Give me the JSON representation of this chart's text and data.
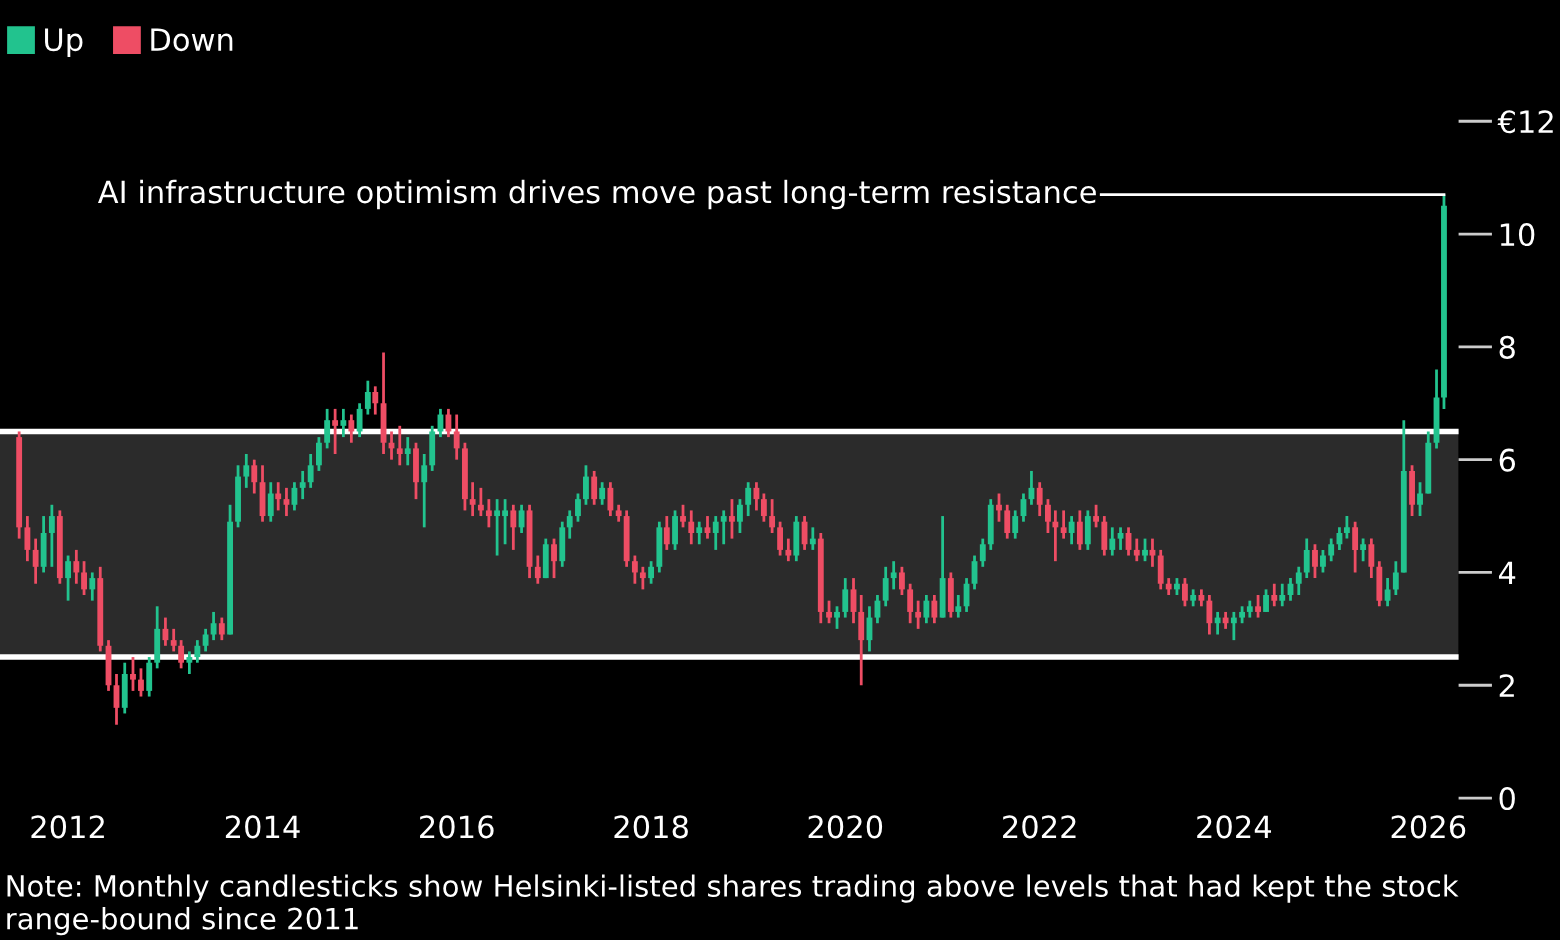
{
  "chart_data": {
    "type": "candlestick",
    "x": [
      "2011-07",
      "2011-08",
      "2011-09",
      "2011-10",
      "2011-11",
      "2011-12",
      "2012-01",
      "2012-02",
      "2012-03",
      "2012-04",
      "2012-05",
      "2012-06",
      "2012-07",
      "2012-08",
      "2012-09",
      "2012-10",
      "2012-11",
      "2012-12",
      "2013-01",
      "2013-02",
      "2013-03",
      "2013-04",
      "2013-05",
      "2013-06",
      "2013-07",
      "2013-08",
      "2013-09",
      "2013-10",
      "2013-11",
      "2013-12",
      "2014-01",
      "2014-02",
      "2014-03",
      "2014-04",
      "2014-05",
      "2014-06",
      "2014-07",
      "2014-08",
      "2014-09",
      "2014-10",
      "2014-11",
      "2014-12",
      "2015-01",
      "2015-02",
      "2015-03",
      "2015-04",
      "2015-05",
      "2015-06",
      "2015-07",
      "2015-08",
      "2015-09",
      "2015-10",
      "2015-11",
      "2015-12",
      "2016-01",
      "2016-02",
      "2016-03",
      "2016-04",
      "2016-05",
      "2016-06",
      "2016-07",
      "2016-08",
      "2016-09",
      "2016-10",
      "2016-11",
      "2016-12",
      "2017-01",
      "2017-02",
      "2017-03",
      "2017-04",
      "2017-05",
      "2017-06",
      "2017-07",
      "2017-08",
      "2017-09",
      "2017-10",
      "2017-11",
      "2017-12",
      "2018-01",
      "2018-02",
      "2018-03",
      "2018-04",
      "2018-05",
      "2018-06",
      "2018-07",
      "2018-08",
      "2018-09",
      "2018-10",
      "2018-11",
      "2018-12",
      "2019-01",
      "2019-02",
      "2019-03",
      "2019-04",
      "2019-05",
      "2019-06",
      "2019-07",
      "2019-08",
      "2019-09",
      "2019-10",
      "2019-11",
      "2019-12",
      "2020-01",
      "2020-02",
      "2020-03",
      "2020-04",
      "2020-05",
      "2020-06",
      "2020-07",
      "2020-08",
      "2020-09",
      "2020-10",
      "2020-11",
      "2020-12",
      "2021-01",
      "2021-02",
      "2021-03",
      "2021-04",
      "2021-05",
      "2021-06",
      "2021-07",
      "2021-08",
      "2021-09",
      "2021-10",
      "2021-11",
      "2021-12",
      "2022-01",
      "2022-02",
      "2022-03",
      "2022-04",
      "2022-05",
      "2022-06",
      "2022-07",
      "2022-08",
      "2022-09",
      "2022-10",
      "2022-11",
      "2022-12",
      "2023-01",
      "2023-02",
      "2023-03",
      "2023-04",
      "2023-05",
      "2023-06",
      "2023-07",
      "2023-08",
      "2023-09",
      "2023-10",
      "2023-11",
      "2023-12",
      "2024-01",
      "2024-02",
      "2024-03",
      "2024-04",
      "2024-05",
      "2024-06",
      "2024-07",
      "2024-08",
      "2024-09",
      "2024-10",
      "2024-11",
      "2024-12",
      "2025-01",
      "2025-02",
      "2025-03",
      "2025-04",
      "2025-05",
      "2025-06",
      "2025-07",
      "2025-08",
      "2025-09",
      "2025-10",
      "2025-11",
      "2025-12",
      "2026-01",
      "2026-02",
      "2026-03"
    ],
    "series": [
      {
        "name": "Up",
        "color": "#22c38e",
        "ohlc": [
          null,
          null,
          null,
          [
            4.1,
            5.0,
            4.0,
            4.7
          ],
          [
            4.7,
            5.2,
            4.1,
            5.0
          ],
          null,
          [
            3.9,
            4.3,
            3.5,
            4.2
          ],
          null,
          null,
          [
            3.7,
            4.0,
            3.5,
            3.9
          ],
          null,
          null,
          null,
          [
            1.6,
            2.4,
            1.5,
            2.2
          ],
          null,
          null,
          [
            1.9,
            2.5,
            1.8,
            2.4
          ],
          [
            2.4,
            3.4,
            2.3,
            3.0
          ],
          null,
          null,
          null,
          [
            2.4,
            2.6,
            2.2,
            2.5
          ],
          [
            2.5,
            2.8,
            2.4,
            2.7
          ],
          [
            2.7,
            3.0,
            2.6,
            2.9
          ],
          [
            2.9,
            3.3,
            2.8,
            3.1
          ],
          null,
          [
            2.9,
            5.2,
            2.9,
            4.9
          ],
          [
            4.9,
            5.9,
            4.8,
            5.7
          ],
          [
            5.7,
            6.1,
            5.5,
            5.9
          ],
          null,
          null,
          [
            5.0,
            5.6,
            4.9,
            5.4
          ],
          null,
          null,
          [
            5.2,
            5.6,
            5.1,
            5.5
          ],
          [
            5.5,
            5.8,
            5.3,
            5.6
          ],
          [
            5.6,
            6.1,
            5.5,
            5.9
          ],
          [
            5.9,
            6.4,
            5.8,
            6.3
          ],
          [
            6.3,
            6.9,
            6.2,
            6.7
          ],
          null,
          [
            6.6,
            6.9,
            6.4,
            6.7
          ],
          null,
          [
            6.5,
            7.0,
            6.4,
            6.9
          ],
          [
            6.9,
            7.4,
            6.8,
            7.2
          ],
          null,
          null,
          null,
          null,
          [
            6.1,
            6.4,
            5.9,
            6.2
          ],
          null,
          [
            5.6,
            6.1,
            4.8,
            5.9
          ],
          [
            5.9,
            6.6,
            5.8,
            6.5
          ],
          [
            6.5,
            6.9,
            6.4,
            6.8
          ],
          null,
          null,
          null,
          null,
          null,
          null,
          [
            5.0,
            5.3,
            4.3,
            5.1
          ],
          [
            5.0,
            5.3,
            4.5,
            5.1
          ],
          null,
          [
            4.8,
            5.2,
            4.7,
            5.1
          ],
          null,
          null,
          [
            3.9,
            4.6,
            3.9,
            4.5
          ],
          null,
          [
            4.2,
            4.9,
            4.1,
            4.8
          ],
          [
            4.8,
            5.1,
            4.6,
            5.0
          ],
          [
            5.0,
            5.4,
            4.9,
            5.3
          ],
          [
            5.3,
            5.9,
            5.2,
            5.7
          ],
          null,
          [
            5.3,
            5.6,
            5.2,
            5.5
          ],
          null,
          null,
          null,
          null,
          null,
          [
            3.9,
            4.2,
            3.8,
            4.1
          ],
          [
            4.1,
            4.9,
            4.0,
            4.8
          ],
          null,
          [
            4.5,
            5.1,
            4.4,
            5.0
          ],
          null,
          null,
          [
            4.7,
            4.9,
            4.5,
            4.8
          ],
          null,
          [
            4.7,
            5.0,
            4.4,
            4.9
          ],
          [
            4.9,
            5.1,
            4.5,
            5.0
          ],
          null,
          [
            4.9,
            5.3,
            4.7,
            5.2
          ],
          [
            5.2,
            5.6,
            5.0,
            5.5
          ],
          null,
          null,
          null,
          null,
          null,
          [
            4.3,
            5.0,
            4.2,
            4.9
          ],
          null,
          [
            4.5,
            4.8,
            4.4,
            4.6
          ],
          null,
          null,
          [
            3.2,
            3.4,
            3.0,
            3.3
          ],
          [
            3.3,
            3.9,
            3.2,
            3.7
          ],
          null,
          null,
          [
            2.8,
            3.4,
            2.6,
            3.2
          ],
          [
            3.2,
            3.6,
            3.1,
            3.5
          ],
          [
            3.5,
            4.1,
            3.4,
            3.9
          ],
          [
            3.9,
            4.2,
            3.7,
            4.0
          ],
          null,
          null,
          null,
          [
            3.2,
            3.6,
            3.1,
            3.5
          ],
          null,
          [
            3.2,
            5.0,
            3.2,
            3.9
          ],
          null,
          [
            3.3,
            3.6,
            3.2,
            3.4
          ],
          [
            3.4,
            3.9,
            3.3,
            3.8
          ],
          [
            3.8,
            4.3,
            3.7,
            4.2
          ],
          [
            4.2,
            4.6,
            4.1,
            4.5
          ],
          [
            4.5,
            5.3,
            4.4,
            5.2
          ],
          null,
          null,
          [
            4.7,
            5.1,
            4.6,
            5.0
          ],
          [
            5.0,
            5.4,
            4.9,
            5.3
          ],
          [
            5.3,
            5.8,
            5.2,
            5.5
          ],
          null,
          null,
          null,
          null,
          [
            4.7,
            5.0,
            4.5,
            4.9
          ],
          null,
          [
            4.5,
            5.1,
            4.4,
            5.0
          ],
          null,
          null,
          [
            4.4,
            4.8,
            4.3,
            4.6
          ],
          [
            4.6,
            4.8,
            4.4,
            4.7
          ],
          null,
          null,
          [
            4.3,
            4.6,
            4.2,
            4.4
          ],
          null,
          null,
          null,
          [
            3.7,
            3.9,
            3.6,
            3.8
          ],
          null,
          [
            3.5,
            3.7,
            3.4,
            3.6
          ],
          null,
          null,
          [
            3.1,
            3.3,
            2.9,
            3.2
          ],
          null,
          [
            3.1,
            3.3,
            2.8,
            3.2
          ],
          [
            3.2,
            3.4,
            3.1,
            3.3
          ],
          [
            3.3,
            3.5,
            3.2,
            3.4
          ],
          null,
          [
            3.3,
            3.7,
            3.3,
            3.6
          ],
          null,
          [
            3.5,
            3.8,
            3.4,
            3.6
          ],
          [
            3.6,
            3.9,
            3.5,
            3.8
          ],
          [
            3.8,
            4.1,
            3.6,
            4.0
          ],
          [
            4.0,
            4.6,
            3.9,
            4.4
          ],
          null,
          [
            4.1,
            4.4,
            4.0,
            4.3
          ],
          [
            4.3,
            4.6,
            4.2,
            4.5
          ],
          [
            4.5,
            4.8,
            4.4,
            4.7
          ],
          [
            4.7,
            5.0,
            4.6,
            4.8
          ],
          null,
          [
            4.4,
            4.6,
            4.2,
            4.5
          ],
          null,
          null,
          [
            3.5,
            3.9,
            3.4,
            3.7
          ],
          [
            3.7,
            4.2,
            3.6,
            4.0
          ],
          [
            4.0,
            6.7,
            4.0,
            5.8
          ],
          null,
          [
            5.2,
            5.6,
            5.0,
            5.4
          ],
          [
            5.4,
            6.5,
            5.4,
            6.3
          ],
          [
            6.3,
            7.6,
            6.2,
            7.1
          ],
          [
            7.1,
            10.7,
            6.9,
            10.5
          ]
        ]
      },
      {
        "name": "Down",
        "color": "#ee4d64",
        "ohlc": [
          [
            6.4,
            6.5,
            4.6,
            4.8
          ],
          [
            4.8,
            5.0,
            4.2,
            4.4
          ],
          [
            4.4,
            4.6,
            3.8,
            4.1
          ],
          null,
          null,
          [
            5.0,
            5.1,
            3.8,
            3.9
          ],
          null,
          [
            4.2,
            4.4,
            3.8,
            4.0
          ],
          [
            4.0,
            4.2,
            3.6,
            3.7
          ],
          null,
          [
            3.9,
            4.1,
            2.6,
            2.7
          ],
          [
            2.7,
            2.8,
            1.9,
            2.0
          ],
          [
            2.0,
            2.2,
            1.3,
            1.6
          ],
          null,
          [
            2.2,
            2.5,
            1.9,
            2.1
          ],
          [
            2.1,
            2.3,
            1.8,
            1.9
          ],
          null,
          null,
          [
            3.0,
            3.2,
            2.7,
            2.8
          ],
          [
            2.8,
            3.0,
            2.6,
            2.7
          ],
          [
            2.7,
            2.8,
            2.3,
            2.4
          ],
          null,
          null,
          null,
          null,
          [
            3.1,
            3.2,
            2.8,
            2.9
          ],
          null,
          null,
          null,
          [
            5.9,
            6.0,
            5.4,
            5.6
          ],
          [
            5.6,
            5.9,
            4.9,
            5.0
          ],
          null,
          [
            5.4,
            5.6,
            5.1,
            5.3
          ],
          [
            5.3,
            5.5,
            5.0,
            5.2
          ],
          null,
          null,
          null,
          null,
          null,
          [
            6.7,
            6.9,
            6.1,
            6.6
          ],
          null,
          [
            6.7,
            6.8,
            6.3,
            6.5
          ],
          null,
          null,
          [
            7.2,
            7.3,
            6.8,
            7.0
          ],
          [
            7.0,
            7.9,
            6.1,
            6.3
          ],
          [
            6.3,
            6.5,
            6.0,
            6.2
          ],
          [
            6.2,
            6.6,
            5.9,
            6.1
          ],
          null,
          [
            6.2,
            6.3,
            5.3,
            5.6
          ],
          null,
          null,
          null,
          [
            6.8,
            6.9,
            6.4,
            6.5
          ],
          [
            6.5,
            6.8,
            6.0,
            6.2
          ],
          [
            6.2,
            6.3,
            5.1,
            5.3
          ],
          [
            5.3,
            5.6,
            5.0,
            5.2
          ],
          [
            5.2,
            5.5,
            5.0,
            5.1
          ],
          [
            5.1,
            5.3,
            4.8,
            5.0
          ],
          null,
          null,
          [
            5.1,
            5.2,
            4.4,
            4.8
          ],
          null,
          [
            5.1,
            5.2,
            3.9,
            4.1
          ],
          [
            4.1,
            4.3,
            3.8,
            3.9
          ],
          null,
          [
            4.5,
            4.6,
            3.9,
            4.2
          ],
          null,
          null,
          null,
          null,
          [
            5.7,
            5.8,
            5.2,
            5.3
          ],
          null,
          [
            5.5,
            5.6,
            5.0,
            5.1
          ],
          [
            5.1,
            5.2,
            4.9,
            5.0
          ],
          [
            5.0,
            5.1,
            4.1,
            4.2
          ],
          [
            4.2,
            4.3,
            3.8,
            4.0
          ],
          [
            4.0,
            4.1,
            3.7,
            3.9
          ],
          null,
          null,
          [
            4.8,
            5.0,
            4.4,
            4.5
          ],
          null,
          [
            5.0,
            5.2,
            4.8,
            4.9
          ],
          [
            4.9,
            5.1,
            4.5,
            4.7
          ],
          null,
          [
            4.8,
            5.0,
            4.6,
            4.7
          ],
          null,
          null,
          [
            5.0,
            5.3,
            4.6,
            4.9
          ],
          null,
          null,
          [
            5.5,
            5.6,
            5.1,
            5.3
          ],
          [
            5.3,
            5.4,
            4.9,
            5.0
          ],
          [
            5.0,
            5.3,
            4.7,
            4.8
          ],
          [
            4.8,
            4.9,
            4.3,
            4.4
          ],
          [
            4.4,
            4.6,
            4.2,
            4.3
          ],
          null,
          [
            4.9,
            5.0,
            4.4,
            4.5
          ],
          null,
          [
            4.6,
            4.7,
            3.1,
            3.3
          ],
          [
            3.3,
            3.5,
            3.1,
            3.2
          ],
          null,
          null,
          [
            3.7,
            3.9,
            3.1,
            3.3
          ],
          [
            3.3,
            3.6,
            2.0,
            2.8
          ],
          null,
          null,
          null,
          null,
          [
            4.0,
            4.1,
            3.6,
            3.7
          ],
          [
            3.7,
            3.8,
            3.1,
            3.3
          ],
          [
            3.3,
            3.5,
            3.0,
            3.2
          ],
          null,
          [
            3.5,
            3.6,
            3.1,
            3.2
          ],
          null,
          [
            3.9,
            4.0,
            3.2,
            3.3
          ],
          null,
          null,
          null,
          null,
          null,
          [
            5.2,
            5.4,
            4.9,
            5.1
          ],
          [
            5.1,
            5.2,
            4.6,
            4.7
          ],
          null,
          null,
          null,
          [
            5.5,
            5.6,
            5.0,
            5.2
          ],
          [
            5.2,
            5.3,
            4.7,
            4.9
          ],
          [
            4.9,
            5.1,
            4.2,
            4.8
          ],
          [
            4.8,
            5.1,
            4.6,
            4.7
          ],
          null,
          [
            4.9,
            5.1,
            4.4,
            4.5
          ],
          null,
          [
            5.0,
            5.2,
            4.8,
            4.9
          ],
          [
            4.9,
            5.0,
            4.3,
            4.4
          ],
          null,
          null,
          [
            4.7,
            4.8,
            4.3,
            4.4
          ],
          [
            4.4,
            4.6,
            4.2,
            4.3
          ],
          null,
          [
            4.4,
            4.6,
            4.1,
            4.3
          ],
          [
            4.3,
            4.4,
            3.7,
            3.8
          ],
          [
            3.8,
            3.9,
            3.6,
            3.7
          ],
          null,
          [
            3.8,
            3.9,
            3.4,
            3.5
          ],
          null,
          [
            3.6,
            3.7,
            3.4,
            3.5
          ],
          [
            3.5,
            3.6,
            2.9,
            3.1
          ],
          null,
          [
            3.2,
            3.3,
            3.0,
            3.1
          ],
          null,
          null,
          null,
          [
            3.4,
            3.6,
            3.2,
            3.3
          ],
          null,
          [
            3.6,
            3.8,
            3.4,
            3.5
          ],
          null,
          null,
          null,
          null,
          [
            4.4,
            4.5,
            3.9,
            4.1
          ],
          null,
          null,
          null,
          null,
          [
            4.8,
            4.9,
            4.0,
            4.4
          ],
          null,
          [
            4.5,
            4.6,
            3.9,
            4.1
          ],
          [
            4.1,
            4.2,
            3.4,
            3.5
          ],
          null,
          null,
          null,
          [
            5.8,
            5.9,
            5.0,
            5.2
          ],
          null,
          null,
          null,
          null
        ]
      }
    ],
    "xlim": [
      "2011-04-20",
      "2026-04-25"
    ],
    "xticks": [
      "2012",
      "2014",
      "2016",
      "2018",
      "2020",
      "2022",
      "2024",
      "2026"
    ],
    "ylim": [
      0,
      12
    ],
    "yticks": [
      0,
      2,
      4,
      6,
      8,
      10,
      {
        "value": 12,
        "label": "€12"
      }
    ],
    "bands": [
      {
        "axis": "y",
        "from": 2.5,
        "to": 6.5,
        "color": "#2b2b2b"
      }
    ],
    "ref_lines": [
      {
        "axis": "y",
        "value": 6.5,
        "color": "#ffffff"
      },
      {
        "axis": "y",
        "value": 2.5,
        "color": "#ffffff"
      }
    ],
    "annotations": [
      {
        "text": "AI infrastructure optimism drives move past long-term resistance",
        "x": "2026-03",
        "y": 10.7
      },
      "Note: Monthly candlesticks show Helsinki-listed shares trading above levels that had kept the stock range-bound since 2011"
    ],
    "legend": "top left",
    "grid": false
  }
}
